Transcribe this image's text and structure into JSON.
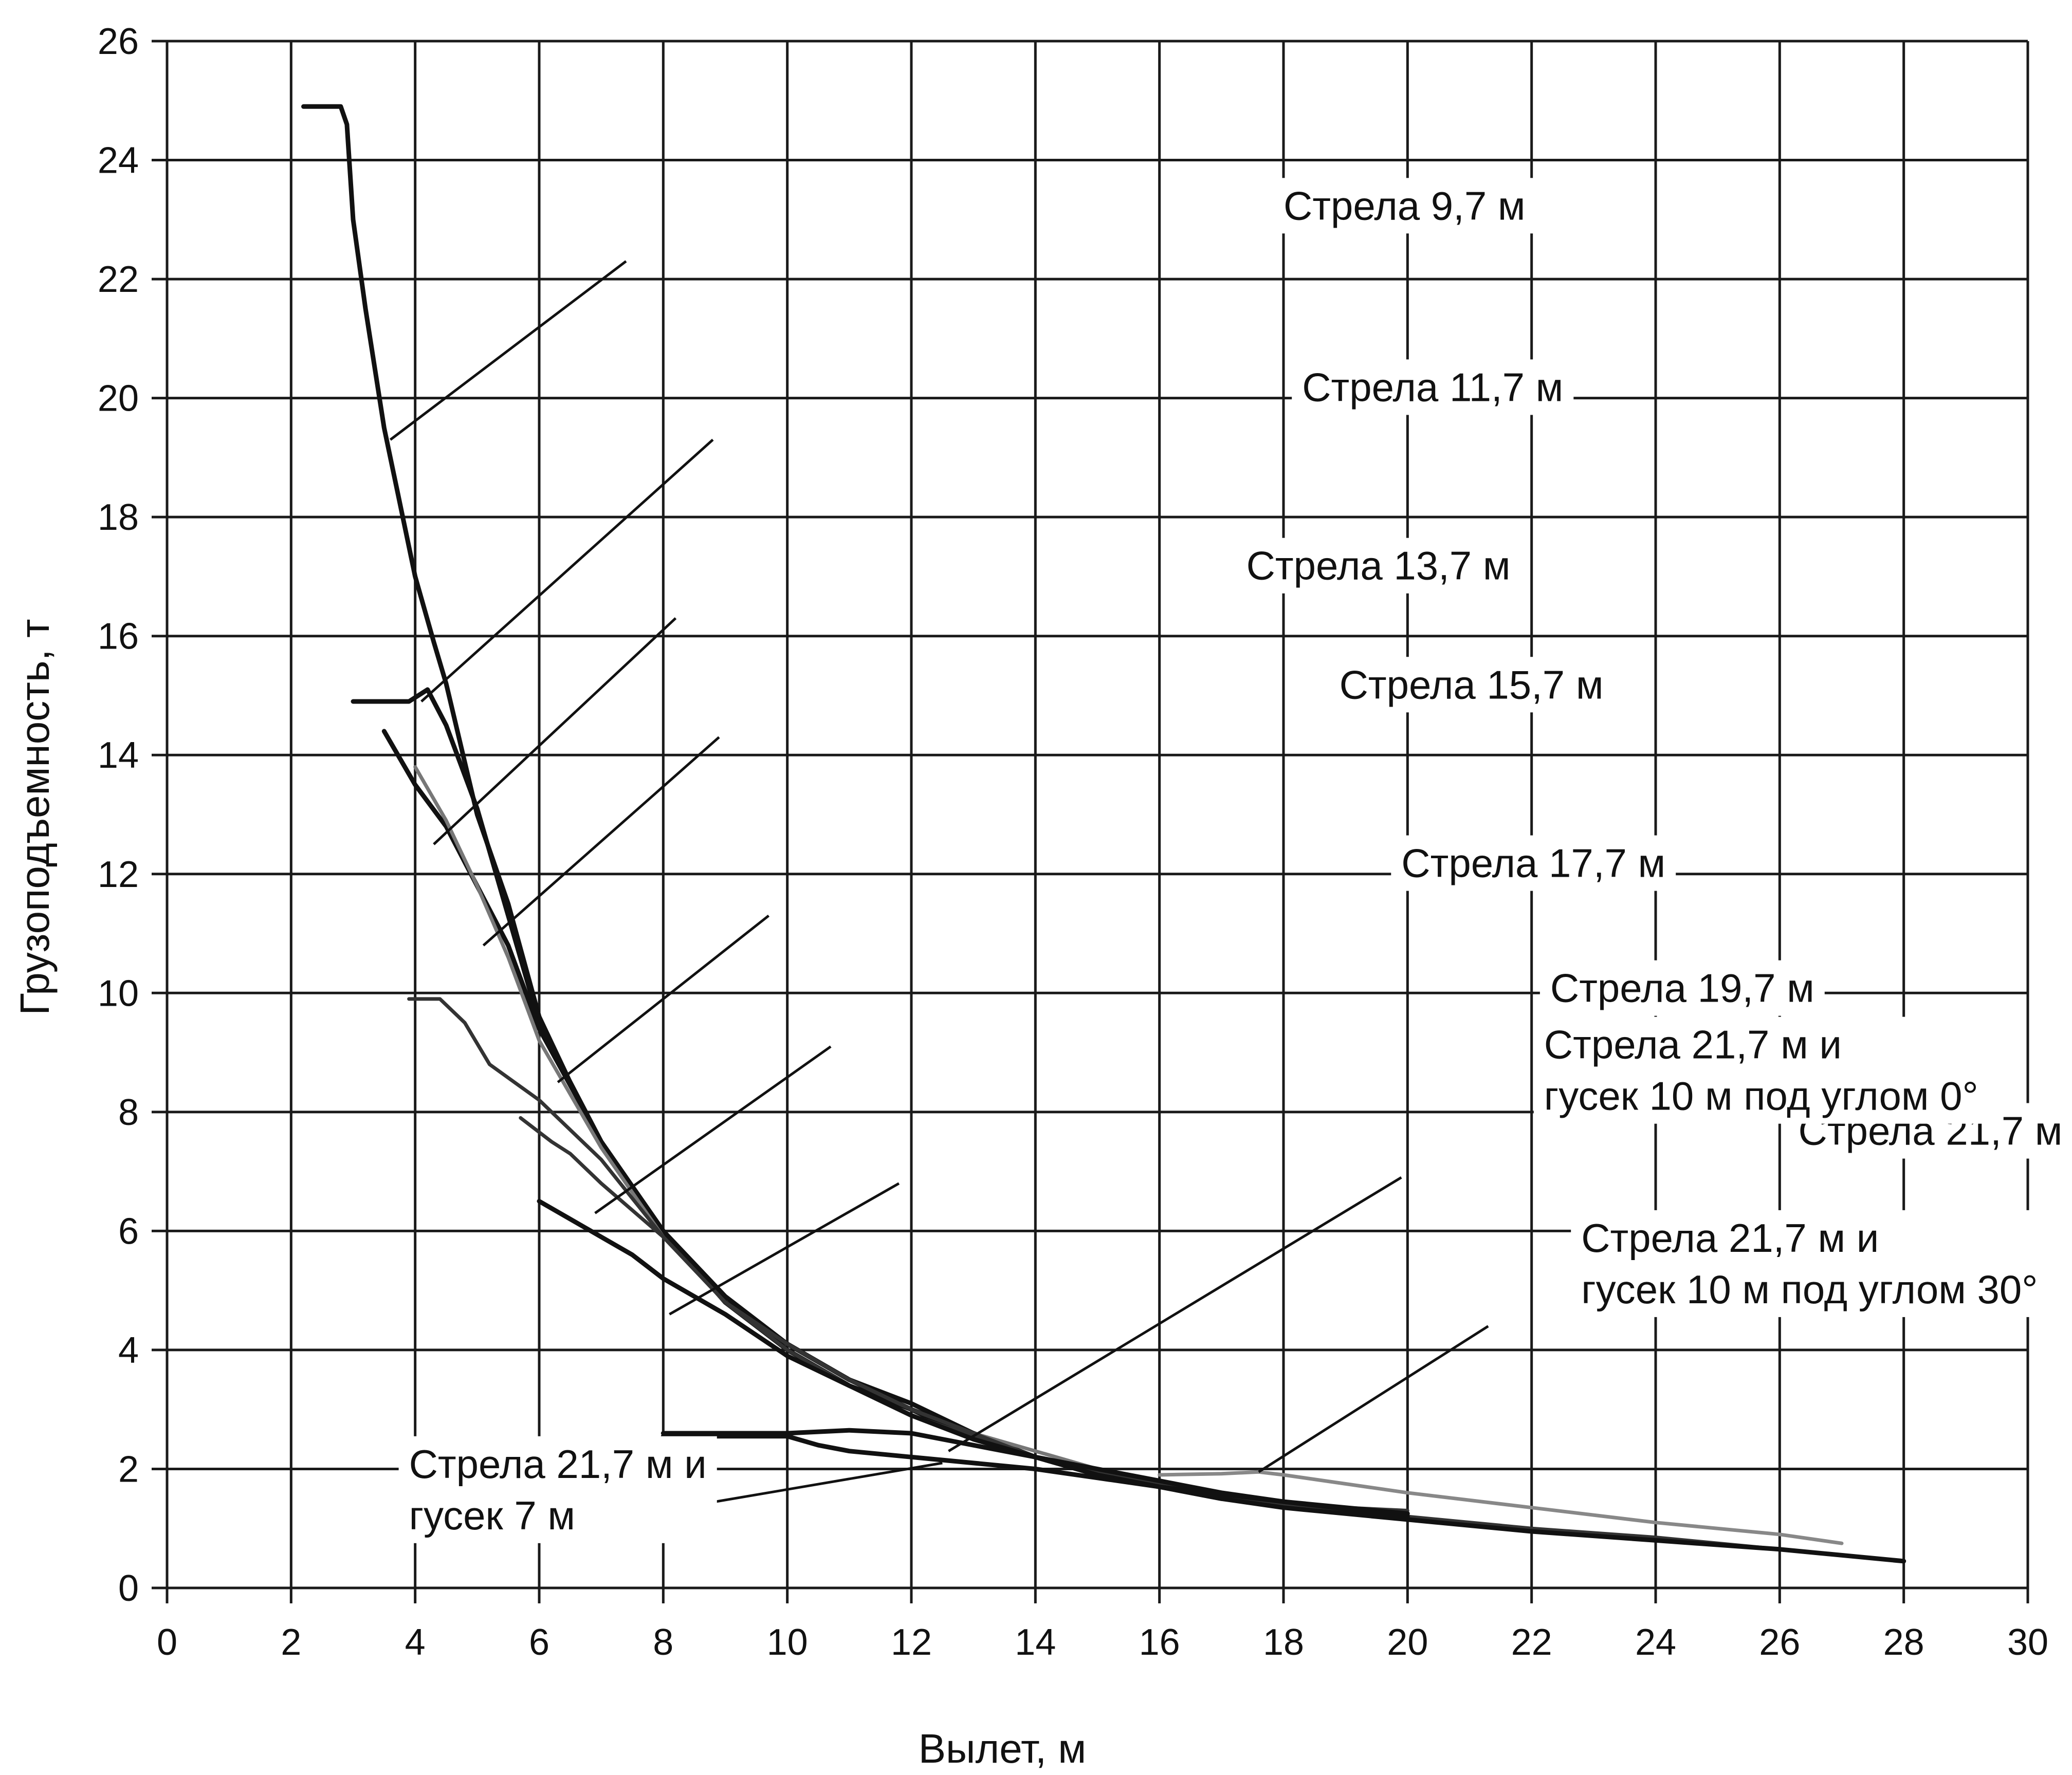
{
  "chart_data": {
    "type": "line",
    "title": "",
    "xlabel": "Вылет, м",
    "ylabel": "Грузоподъемность, т",
    "xlim": [
      0,
      30
    ],
    "ylim": [
      0,
      26
    ],
    "x_ticks": [
      0,
      2,
      4,
      6,
      8,
      10,
      12,
      14,
      16,
      18,
      20,
      22,
      24,
      26,
      28,
      30
    ],
    "y_ticks": [
      0,
      2,
      4,
      6,
      8,
      10,
      12,
      14,
      16,
      18,
      20,
      22,
      24,
      26
    ],
    "grid": true,
    "legend": "none",
    "series": [
      {
        "name": "Стрела 9,7 м",
        "color": "#111111",
        "points": [
          [
            2.2,
            24.9
          ],
          [
            2.8,
            24.9
          ],
          [
            2.9,
            24.6
          ],
          [
            3.0,
            23.0
          ],
          [
            3.2,
            21.5
          ],
          [
            3.5,
            19.5
          ],
          [
            3.7,
            18.5
          ],
          [
            4.0,
            17.0
          ],
          [
            4.3,
            15.9
          ],
          [
            4.5,
            15.2
          ],
          [
            5.0,
            13.0
          ],
          [
            5.5,
            11.5
          ],
          [
            6.0,
            9.6
          ],
          [
            6.5,
            8.5
          ],
          [
            7.0,
            7.5
          ],
          [
            8.0,
            6.0
          ],
          [
            9.0,
            4.8
          ],
          [
            10.0,
            4.1
          ],
          [
            11.0,
            3.5
          ],
          [
            12.0,
            3.1
          ],
          [
            13.0,
            2.6
          ],
          [
            14.0,
            2.2
          ]
        ]
      },
      {
        "name": "Стрела 11,7 м",
        "color": "#111111",
        "points": [
          [
            3.0,
            14.9
          ],
          [
            3.5,
            14.9
          ],
          [
            3.9,
            14.9
          ],
          [
            4.2,
            15.1
          ],
          [
            4.5,
            14.5
          ],
          [
            5.0,
            13.1
          ],
          [
            5.5,
            11.3
          ],
          [
            6.0,
            9.5
          ],
          [
            7.0,
            7.5
          ],
          [
            8.0,
            6.0
          ],
          [
            9.0,
            4.9
          ],
          [
            10.0,
            4.1
          ],
          [
            11.0,
            3.5
          ],
          [
            12.0,
            3.0
          ],
          [
            13.0,
            2.6
          ],
          [
            14.0,
            2.2
          ],
          [
            15.0,
            1.9
          ],
          [
            16.0,
            1.7
          ]
        ]
      },
      {
        "name": "Стрела 13,7 м",
        "color": "#111111",
        "points": [
          [
            3.5,
            14.4
          ],
          [
            4.0,
            13.5
          ],
          [
            4.5,
            12.8
          ],
          [
            5.0,
            11.8
          ],
          [
            5.5,
            10.8
          ],
          [
            6.0,
            9.4
          ],
          [
            7.0,
            7.5
          ],
          [
            8.0,
            6.0
          ],
          [
            9.0,
            4.8
          ],
          [
            10.0,
            4.0
          ],
          [
            11.0,
            3.4
          ],
          [
            12.0,
            3.0
          ],
          [
            13.0,
            2.5
          ],
          [
            14.0,
            2.2
          ],
          [
            15.0,
            1.9
          ],
          [
            16.0,
            1.7
          ],
          [
            17.0,
            1.5
          ]
        ]
      },
      {
        "name": "Стрела 15,7 м",
        "color": "#777777",
        "points": [
          [
            4.0,
            13.8
          ],
          [
            4.5,
            12.9
          ],
          [
            5.0,
            11.8
          ],
          [
            5.5,
            10.6
          ],
          [
            6.0,
            9.2
          ],
          [
            7.0,
            7.4
          ],
          [
            8.0,
            5.9
          ],
          [
            9.0,
            4.8
          ],
          [
            10.0,
            4.1
          ],
          [
            11.0,
            3.5
          ],
          [
            12.0,
            3.0
          ],
          [
            13.0,
            2.6
          ],
          [
            14.0,
            2.3
          ],
          [
            15.0,
            2.0
          ],
          [
            16.0,
            1.8
          ],
          [
            17.0,
            1.6
          ],
          [
            18.0,
            1.45
          ]
        ]
      },
      {
        "name": "Стрела 17,7 м",
        "color": "#333333",
        "points": [
          [
            3.9,
            9.9
          ],
          [
            4.4,
            9.9
          ],
          [
            4.8,
            9.5
          ],
          [
            5.2,
            8.8
          ],
          [
            6.0,
            8.2
          ],
          [
            7.0,
            7.2
          ],
          [
            8.0,
            5.9
          ],
          [
            9.0,
            4.8
          ],
          [
            10.0,
            4.1
          ],
          [
            11.0,
            3.5
          ],
          [
            12.0,
            3.0
          ],
          [
            13.0,
            2.6
          ],
          [
            14.0,
            2.2
          ],
          [
            15.0,
            1.95
          ],
          [
            16.0,
            1.75
          ],
          [
            17.0,
            1.6
          ],
          [
            18.0,
            1.45
          ],
          [
            19.0,
            1.35
          ],
          [
            20.0,
            1.3
          ]
        ]
      },
      {
        "name": "Стрела 19,7 м",
        "color": "#333333",
        "points": [
          [
            5.7,
            7.9
          ],
          [
            6.2,
            7.5
          ],
          [
            6.5,
            7.3
          ],
          [
            7.0,
            6.8
          ],
          [
            8.0,
            5.9
          ],
          [
            9.0,
            4.8
          ],
          [
            10.0,
            4.0
          ],
          [
            11.0,
            3.4
          ],
          [
            12.0,
            2.9
          ],
          [
            13.0,
            2.55
          ],
          [
            14.0,
            2.2
          ],
          [
            15.0,
            1.9
          ],
          [
            16.0,
            1.7
          ],
          [
            17.0,
            1.55
          ],
          [
            18.0,
            1.4
          ],
          [
            19.0,
            1.3
          ],
          [
            20.0,
            1.2
          ],
          [
            22.0,
            1.0
          ],
          [
            24.0,
            0.85
          ],
          [
            26.0,
            0.65
          ],
          [
            27.0,
            0.55
          ]
        ]
      },
      {
        "name": "Стрела 21,7 м",
        "color": "#111111",
        "points": [
          [
            6.0,
            6.5
          ],
          [
            6.5,
            6.2
          ],
          [
            7.0,
            5.9
          ],
          [
            7.5,
            5.6
          ],
          [
            8.0,
            5.2
          ],
          [
            9.0,
            4.6
          ],
          [
            10.0,
            3.9
          ],
          [
            11.0,
            3.4
          ],
          [
            12.0,
            2.9
          ],
          [
            13.0,
            2.5
          ],
          [
            14.0,
            2.2
          ],
          [
            15.0,
            1.9
          ],
          [
            16.0,
            1.7
          ],
          [
            17.0,
            1.5
          ],
          [
            18.0,
            1.35
          ],
          [
            20.0,
            1.15
          ],
          [
            22.0,
            0.95
          ],
          [
            24.0,
            0.8
          ],
          [
            26.0,
            0.65
          ],
          [
            28.0,
            0.45
          ]
        ]
      },
      {
        "name": "Стрела 21,7 м и гусек 10 м под углом 0°",
        "color": "#111111",
        "points": [
          [
            8.0,
            2.6
          ],
          [
            9.0,
            2.6
          ],
          [
            10.0,
            2.6
          ],
          [
            11.0,
            2.65
          ],
          [
            12.0,
            2.6
          ],
          [
            13.0,
            2.4
          ],
          [
            14.0,
            2.2
          ],
          [
            15.0,
            2.0
          ],
          [
            16.0,
            1.8
          ],
          [
            17.0,
            1.6
          ],
          [
            18.0,
            1.45
          ],
          [
            19.0,
            1.35
          ],
          [
            20.0,
            1.25
          ]
        ]
      },
      {
        "name": "Стрела 21,7 м и гусек 10 м под углом 30°",
        "color": "#888888",
        "points": [
          [
            16.0,
            1.9
          ],
          [
            17.0,
            1.92
          ],
          [
            17.6,
            1.95
          ],
          [
            18.0,
            1.9
          ],
          [
            20.0,
            1.6
          ],
          [
            22.0,
            1.35
          ],
          [
            24.0,
            1.1
          ],
          [
            26.0,
            0.9
          ],
          [
            27.0,
            0.75
          ]
        ]
      },
      {
        "name": "Стрела 21,7 м и гусек 7 м",
        "color": "#111111",
        "points": [
          [
            8.0,
            2.55
          ],
          [
            9.0,
            2.55
          ],
          [
            10.0,
            2.55
          ],
          [
            10.5,
            2.4
          ],
          [
            11.0,
            2.3
          ],
          [
            12.0,
            2.2
          ],
          [
            13.0,
            2.1
          ],
          [
            14.0,
            2.0
          ],
          [
            15.0,
            1.85
          ],
          [
            16.0,
            1.7
          ],
          [
            18.0,
            1.45
          ],
          [
            20.0,
            1.2
          ]
        ]
      }
    ],
    "annotations": [
      {
        "lines": [
          "Стрела 9,7 м"
        ],
        "text_at": [
          18.0,
          23.0
        ],
        "leader_from": [
          7.4,
          22.3
        ],
        "leader_to": [
          3.6,
          19.3
        ]
      },
      {
        "lines": [
          "Стрела 11,7 м"
        ],
        "text_at": [
          18.3,
          19.95
        ],
        "leader_from": [
          8.8,
          19.3
        ],
        "leader_to": [
          4.1,
          14.9
        ]
      },
      {
        "lines": [
          "Стрела 13,7 м"
        ],
        "text_at": [
          17.4,
          16.95
        ],
        "leader_from": [
          8.2,
          16.3
        ],
        "leader_to": [
          4.3,
          12.5
        ]
      },
      {
        "lines": [
          "Стрела 15,7 м"
        ],
        "text_at": [
          18.9,
          14.95
        ],
        "leader_from": [
          8.9,
          14.3
        ],
        "leader_to": [
          5.1,
          10.8
        ]
      },
      {
        "lines": [
          "Стрела 17,7 м"
        ],
        "text_at": [
          19.9,
          11.95
        ],
        "leader_from": [
          9.7,
          11.3
        ],
        "leader_to": [
          6.3,
          8.5
        ]
      },
      {
        "lines": [
          "Стрела 19,7 м"
        ],
        "text_at": [
          22.3,
          9.85
        ],
        "leader_from": [
          10.7,
          9.1
        ],
        "leader_to": [
          6.9,
          6.3
        ]
      },
      {
        "lines": [
          "Стрела 21,7 м"
        ],
        "text_at": [
          26.3,
          7.45
        ],
        "leader_from": [
          11.8,
          6.8
        ],
        "leader_to": [
          8.1,
          4.6
        ]
      },
      {
        "lines": [
          "Стрела 21,7 м и",
          "гусек 10 м под углом 0°"
        ],
        "text_at": [
          22.2,
          8.9
        ],
        "leader_from": [
          19.9,
          6.9
        ],
        "leader_to": [
          12.6,
          2.3
        ]
      },
      {
        "lines": [
          "Стрела 21,7 м и",
          "гусек 10 м под углом 30°"
        ],
        "text_at": [
          22.8,
          5.65
        ],
        "leader_from": [
          21.3,
          4.4
        ],
        "leader_to": [
          17.6,
          1.95
        ]
      },
      {
        "lines": [
          "Стрела 21,7 м и",
          "гусек 7 м"
        ],
        "text_at": [
          3.9,
          1.85
        ],
        "leader_from": [
          8.0,
          1.3
        ],
        "leader_to": [
          12.5,
          2.1
        ]
      }
    ]
  }
}
